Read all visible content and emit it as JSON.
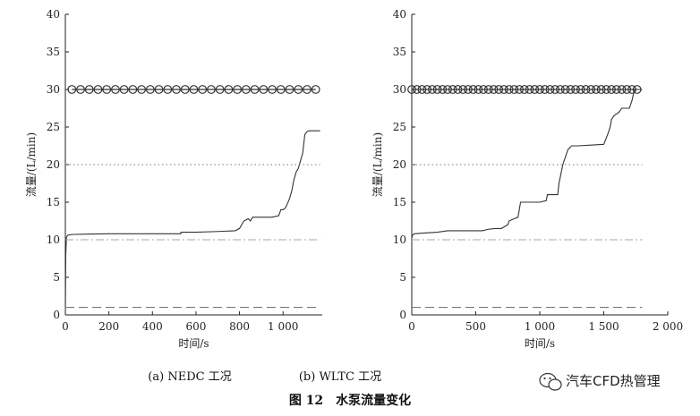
{
  "figure_title": "图 12　水泵流量变化",
  "watermark": "汽车CFD热管理",
  "chart_data": [
    {
      "type": "line",
      "caption": "(a) NEDC 工况",
      "xlabel": "时间/s",
      "ylabel": "流量/(L/min)",
      "xlim": [
        0,
        1180
      ],
      "ylim": [
        0,
        40
      ],
      "xticks": [
        0,
        200,
        400,
        600,
        800,
        1000
      ],
      "xtick_labels": [
        "0",
        "200",
        "400",
        "600",
        "800",
        "1 000"
      ],
      "yticks": [
        0,
        5,
        10,
        15,
        20,
        25,
        30,
        35,
        40
      ],
      "grid": false,
      "legend": "none",
      "series": [
        {
          "style": "solid",
          "color": "#333333",
          "x": [
            0,
            2,
            5,
            10,
            30,
            100,
            200,
            300,
            400,
            500,
            530,
            531,
            600,
            700,
            780,
            800,
            820,
            840,
            850,
            860,
            870,
            900,
            950,
            980,
            990,
            1000,
            1010,
            1020,
            1030,
            1040,
            1050,
            1060,
            1070,
            1080,
            1090,
            1100,
            1110,
            1120,
            1170
          ],
          "y": [
            0,
            8,
            10.3,
            10.6,
            10.7,
            10.75,
            10.8,
            10.8,
            10.8,
            10.8,
            10.8,
            11,
            11,
            11.1,
            11.2,
            11.5,
            12.5,
            12.8,
            12.5,
            13,
            13,
            13,
            13,
            13.2,
            14,
            14,
            14.2,
            14.8,
            15.5,
            16.5,
            18,
            19,
            19.5,
            20.5,
            21.5,
            24,
            24.4,
            24.5,
            24.5
          ]
        },
        {
          "style": "circles",
          "color": "#333333",
          "x": [
            30,
            70,
            110,
            150,
            190,
            230,
            270,
            310,
            350,
            390,
            430,
            470,
            510,
            550,
            590,
            630,
            670,
            710,
            750,
            790,
            830,
            870,
            910,
            950,
            990,
            1030,
            1070,
            1110,
            1150
          ],
          "y": [
            30,
            30,
            30,
            30,
            30,
            30,
            30,
            30,
            30,
            30,
            30,
            30,
            30,
            30,
            30,
            30,
            30,
            30,
            30,
            30,
            30,
            30,
            30,
            30,
            30,
            30,
            30,
            30,
            30
          ]
        },
        {
          "style": "dotted",
          "color": "#777777",
          "x": [
            0,
            1170
          ],
          "y": [
            20,
            20
          ]
        },
        {
          "style": "dashdot",
          "color": "#aaaaaa",
          "x": [
            0,
            1170
          ],
          "y": [
            10,
            10
          ]
        },
        {
          "style": "dashed",
          "color": "#777777",
          "x": [
            0,
            1170
          ],
          "y": [
            1,
            1
          ]
        }
      ]
    },
    {
      "type": "line",
      "caption": "(b) WLTC 工况",
      "xlabel": "时间/s",
      "ylabel": "流量/(L/min)",
      "xlim": [
        0,
        2000
      ],
      "ylim": [
        0,
        40
      ],
      "xticks": [
        0,
        500,
        1000,
        1500,
        2000
      ],
      "xtick_labels": [
        "0",
        "500",
        "1 000",
        "1 500",
        "2 000"
      ],
      "yticks": [
        0,
        5,
        10,
        15,
        20,
        25,
        30,
        35,
        40
      ],
      "grid": false,
      "legend": "none",
      "series": [
        {
          "style": "solid",
          "color": "#333333",
          "x": [
            0,
            5,
            20,
            100,
            200,
            280,
            300,
            400,
            500,
            550,
            600,
            650,
            700,
            750,
            760,
            800,
            830,
            850,
            860,
            900,
            1000,
            1050,
            1060,
            1100,
            1140,
            1150,
            1180,
            1220,
            1250,
            1300,
            1400,
            1500,
            1530,
            1550,
            1560,
            1580,
            1620,
            1640,
            1660,
            1700,
            1720,
            1740,
            1800
          ],
          "y": [
            10.2,
            10.6,
            10.8,
            10.9,
            11,
            11.2,
            11.2,
            11.2,
            11.2,
            11.2,
            11.4,
            11.5,
            11.5,
            12,
            12.5,
            12.8,
            13,
            15,
            15,
            15,
            15,
            15.2,
            16,
            16,
            16,
            17.5,
            20,
            22,
            22.5,
            22.5,
            22.6,
            22.7,
            24,
            25,
            26,
            26.5,
            27,
            27.5,
            27.5,
            27.5,
            28.5,
            30,
            30
          ]
        },
        {
          "style": "circles",
          "color": "#333333",
          "x": [
            0,
            40,
            80,
            120,
            160,
            200,
            240,
            280,
            320,
            360,
            400,
            440,
            480,
            520,
            560,
            600,
            640,
            680,
            720,
            760,
            800,
            840,
            880,
            920,
            960,
            1000,
            1040,
            1080,
            1120,
            1160,
            1200,
            1240,
            1280,
            1320,
            1360,
            1400,
            1440,
            1480,
            1520,
            1560,
            1600,
            1640,
            1680,
            1720,
            1760
          ],
          "y": [
            30,
            30,
            30,
            30,
            30,
            30,
            30,
            30,
            30,
            30,
            30,
            30,
            30,
            30,
            30,
            30,
            30,
            30,
            30,
            30,
            30,
            30,
            30,
            30,
            30,
            30,
            30,
            30,
            30,
            30,
            30,
            30,
            30,
            30,
            30,
            30,
            30,
            30,
            30,
            30,
            30,
            30,
            30,
            30,
            30
          ]
        },
        {
          "style": "dotted",
          "color": "#777777",
          "x": [
            0,
            1800
          ],
          "y": [
            20,
            20
          ]
        },
        {
          "style": "dashdot",
          "color": "#aaaaaa",
          "x": [
            0,
            1800
          ],
          "y": [
            10,
            10
          ]
        },
        {
          "style": "dashed",
          "color": "#777777",
          "x": [
            0,
            1800
          ],
          "y": [
            1,
            1
          ]
        }
      ]
    }
  ]
}
